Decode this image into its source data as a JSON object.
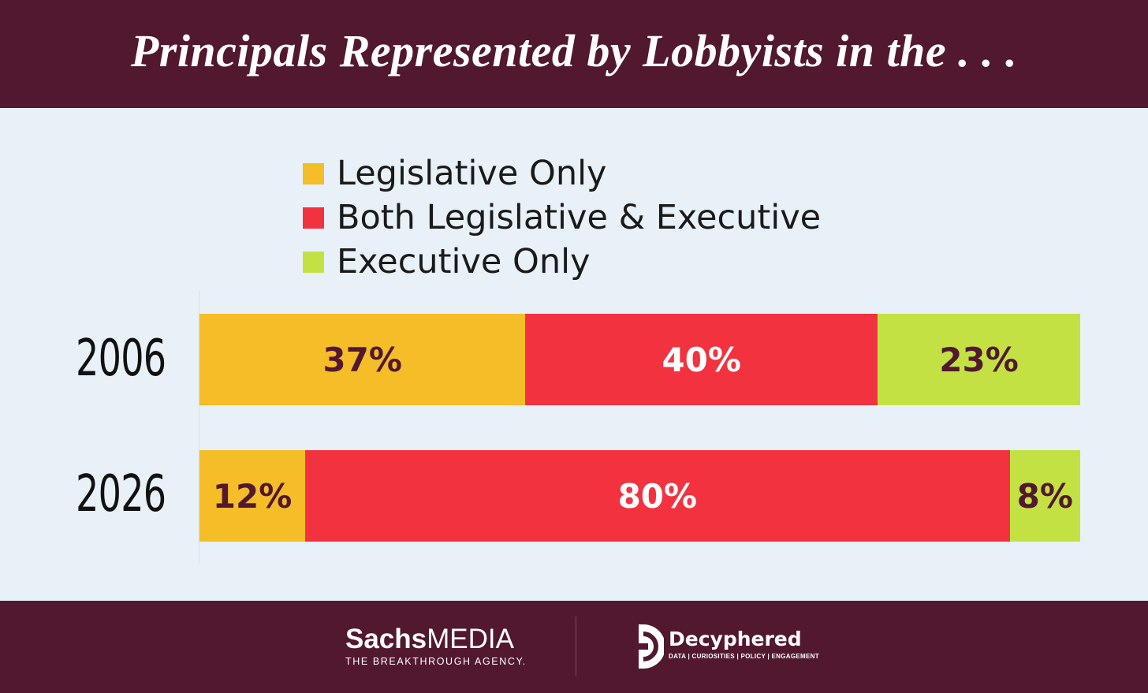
{
  "header": {
    "title": "Principals Represented by Lobbyists in the . . ."
  },
  "colors": {
    "header_bg": "#52182f",
    "legislative_only": "#f5bd27",
    "both": "#f2323f",
    "executive_only": "#c4e144",
    "dark_label": "#52182f",
    "light_label": "#ffffff"
  },
  "chart_data": {
    "type": "bar",
    "orientation": "horizontal",
    "stacked": true,
    "percent": true,
    "categories": [
      "2006",
      "2026"
    ],
    "series": [
      {
        "name": "Legislative Only",
        "values": [
          37,
          12
        ],
        "labels": [
          "37%",
          "12%"
        ],
        "color": "#f5bd27",
        "label_color": "#52182f"
      },
      {
        "name": "Both Legislative & Executive",
        "values": [
          40,
          80
        ],
        "labels": [
          "40%",
          "80%"
        ],
        "color": "#f2323f",
        "label_color": "#ffffff"
      },
      {
        "name": "Executive Only",
        "values": [
          23,
          8
        ],
        "labels": [
          "23%",
          "8%"
        ],
        "color": "#c4e144",
        "label_color": "#52182f"
      }
    ],
    "xlim": [
      0,
      100
    ],
    "legend_position": "top",
    "grid": false
  },
  "footer": {
    "sachs_name_bold": "Sachs",
    "sachs_name_light": "MEDIA",
    "sachs_tagline": "THE BREAKTHROUGH AGENCY.",
    "decyphered_name": "Decyphered",
    "decyphered_tagline": "DATA | CURIOSITIES | POLICY | ENGAGEMENT"
  }
}
